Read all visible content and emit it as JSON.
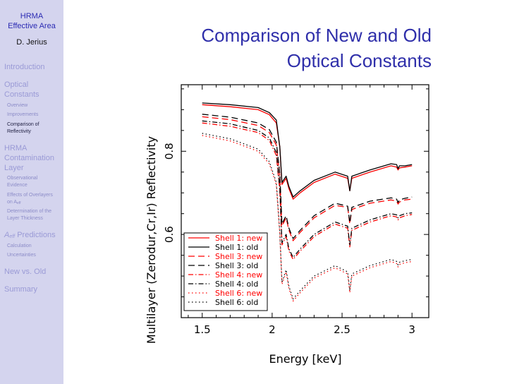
{
  "sidebar": {
    "title_line1": "HRMA",
    "title_line2": "Effective Area",
    "author": "D. Jerius",
    "sections": {
      "introduction": "Introduction",
      "optical_line1": "Optical",
      "optical_line2": "Constants",
      "optical_subs": [
        "Overview",
        "Improvements",
        "Comparison of",
        "Reflectivity"
      ],
      "hrma_line1": "HRMA",
      "hrma_line2": "Contamination",
      "hrma_line3": "Layer",
      "hrma_subs": [
        "Observational",
        "Evidence",
        "Effects of Overlayers",
        "Determination of the",
        "Layer Thickness"
      ],
      "aeff_prefix": "A",
      "aeff_sub": "eff",
      "aeff_suffix": " Predictions",
      "aeff_subs": [
        "Calculation",
        "Uncertainties"
      ],
      "new_vs_old": "New vs. Old",
      "summary": "Summary"
    },
    "on_aeff_prefix": "on A",
    "on_aeff_sub": "eff"
  },
  "slide": {
    "title_line1": "Comparison of New and Old",
    "title_line2": "Optical Constants"
  },
  "colors": {
    "accent": "#2f2faa",
    "sidebar_bg": "#d4d4ee",
    "new_series": "#ff0000",
    "old_series": "#000000"
  },
  "chart_data": {
    "type": "line",
    "xlabel": "Energy [keV]",
    "ylabel": "Multilayer (Zerodur,Cr,Ir) Reflectivity",
    "xlim": [
      1.35,
      3.12
    ],
    "ylim": [
      0.4,
      0.96
    ],
    "xticks": [
      1.5,
      2,
      2.5,
      3
    ],
    "xtick_labels": [
      "1.5",
      "2",
      "2.5",
      "3"
    ],
    "yticks": [
      0.6,
      0.8
    ],
    "ytick_labels": [
      "0.6",
      "0.8"
    ],
    "legend_position": "bottom-left",
    "series": [
      {
        "name": "Shell 1: new",
        "color": "#ff0000",
        "dash": "solid",
        "x": [
          1.5,
          1.7,
          1.9,
          1.98,
          2.03,
          2.055,
          2.07,
          2.1,
          2.12,
          2.15,
          2.2,
          2.3,
          2.45,
          2.54,
          2.555,
          2.57,
          2.7,
          2.85,
          2.89,
          2.9,
          2.91,
          2.95,
          3.0
        ],
        "y": [
          0.912,
          0.907,
          0.9,
          0.888,
          0.868,
          0.81,
          0.72,
          0.735,
          0.71,
          0.685,
          0.7,
          0.725,
          0.745,
          0.735,
          0.705,
          0.735,
          0.75,
          0.765,
          0.762,
          0.755,
          0.76,
          0.762,
          0.765
        ]
      },
      {
        "name": "Shell 1: old",
        "color": "#000000",
        "dash": "solid",
        "x": [
          1.5,
          1.7,
          1.9,
          1.98,
          2.03,
          2.055,
          2.07,
          2.1,
          2.12,
          2.15,
          2.2,
          2.3,
          2.45,
          2.54,
          2.555,
          2.57,
          2.7,
          2.85,
          2.89,
          2.9,
          2.91,
          2.95,
          3.0
        ],
        "y": [
          0.916,
          0.912,
          0.905,
          0.893,
          0.875,
          0.81,
          0.725,
          0.74,
          0.715,
          0.69,
          0.705,
          0.73,
          0.75,
          0.74,
          0.705,
          0.74,
          0.755,
          0.77,
          0.768,
          0.758,
          0.765,
          0.765,
          0.768
        ]
      },
      {
        "name": "Shell 3: new",
        "color": "#ff0000",
        "dash": "longdash",
        "x": [
          1.5,
          1.7,
          1.9,
          1.98,
          2.03,
          2.055,
          2.07,
          2.1,
          2.12,
          2.15,
          2.2,
          2.3,
          2.45,
          2.54,
          2.555,
          2.57,
          2.7,
          2.85,
          2.89,
          2.9,
          2.91,
          2.95,
          3.0
        ],
        "y": [
          0.883,
          0.876,
          0.862,
          0.845,
          0.815,
          0.74,
          0.62,
          0.64,
          0.61,
          0.585,
          0.605,
          0.64,
          0.67,
          0.665,
          0.625,
          0.66,
          0.675,
          0.683,
          0.68,
          0.673,
          0.678,
          0.683,
          0.685
        ]
      },
      {
        "name": "Shell 3: old",
        "color": "#000000",
        "dash": "longdash",
        "x": [
          1.5,
          1.7,
          1.9,
          1.98,
          2.03,
          2.055,
          2.07,
          2.1,
          2.12,
          2.15,
          2.2,
          2.3,
          2.45,
          2.54,
          2.555,
          2.57,
          2.7,
          2.85,
          2.89,
          2.9,
          2.91,
          2.95,
          3.0
        ],
        "y": [
          0.889,
          0.882,
          0.868,
          0.852,
          0.822,
          0.745,
          0.625,
          0.645,
          0.615,
          0.59,
          0.61,
          0.645,
          0.675,
          0.668,
          0.628,
          0.665,
          0.68,
          0.688,
          0.685,
          0.677,
          0.683,
          0.687,
          0.69
        ]
      },
      {
        "name": "Shell 4: new",
        "color": "#ff0000",
        "dash": "dashdot",
        "x": [
          1.5,
          1.7,
          1.9,
          1.98,
          2.03,
          2.055,
          2.07,
          2.1,
          2.12,
          2.15,
          2.2,
          2.3,
          2.45,
          2.54,
          2.555,
          2.57,
          2.7,
          2.85,
          2.89,
          2.9,
          2.91,
          2.95,
          3.0
        ],
        "y": [
          0.868,
          0.86,
          0.845,
          0.826,
          0.79,
          0.705,
          0.575,
          0.595,
          0.56,
          0.54,
          0.56,
          0.595,
          0.625,
          0.615,
          0.57,
          0.61,
          0.63,
          0.645,
          0.642,
          0.635,
          0.64,
          0.645,
          0.648
        ]
      },
      {
        "name": "Shell 4: old",
        "color": "#000000",
        "dash": "dashdot",
        "x": [
          1.5,
          1.7,
          1.9,
          1.98,
          2.03,
          2.055,
          2.07,
          2.1,
          2.12,
          2.15,
          2.2,
          2.3,
          2.45,
          2.54,
          2.555,
          2.57,
          2.7,
          2.85,
          2.89,
          2.9,
          2.91,
          2.95,
          3.0
        ],
        "y": [
          0.873,
          0.866,
          0.85,
          0.832,
          0.797,
          0.71,
          0.58,
          0.6,
          0.565,
          0.545,
          0.565,
          0.6,
          0.63,
          0.62,
          0.575,
          0.615,
          0.635,
          0.65,
          0.647,
          0.64,
          0.645,
          0.65,
          0.652
        ]
      },
      {
        "name": "Shell 6: new",
        "color": "#ff0000",
        "dash": "dotted",
        "x": [
          1.5,
          1.7,
          1.9,
          1.98,
          2.03,
          2.055,
          2.07,
          2.1,
          2.12,
          2.15,
          2.2,
          2.3,
          2.45,
          2.54,
          2.555,
          2.57,
          2.7,
          2.85,
          2.89,
          2.9,
          2.91,
          2.95,
          3.0
        ],
        "y": [
          0.838,
          0.825,
          0.8,
          0.77,
          0.72,
          0.6,
          0.48,
          0.51,
          0.47,
          0.44,
          0.46,
          0.495,
          0.52,
          0.505,
          0.46,
          0.5,
          0.52,
          0.535,
          0.53,
          0.522,
          0.528,
          0.532,
          0.535
        ]
      },
      {
        "name": "Shell 6: old",
        "color": "#000000",
        "dash": "dotted",
        "x": [
          1.5,
          1.7,
          1.9,
          1.98,
          2.03,
          2.055,
          2.07,
          2.1,
          2.12,
          2.15,
          2.2,
          2.3,
          2.45,
          2.54,
          2.555,
          2.57,
          2.7,
          2.85,
          2.89,
          2.9,
          2.91,
          2.95,
          3.0
        ],
        "y": [
          0.843,
          0.83,
          0.805,
          0.775,
          0.725,
          0.605,
          0.485,
          0.515,
          0.475,
          0.445,
          0.465,
          0.5,
          0.525,
          0.51,
          0.465,
          0.505,
          0.525,
          0.54,
          0.535,
          0.527,
          0.533,
          0.537,
          0.54
        ]
      }
    ]
  }
}
